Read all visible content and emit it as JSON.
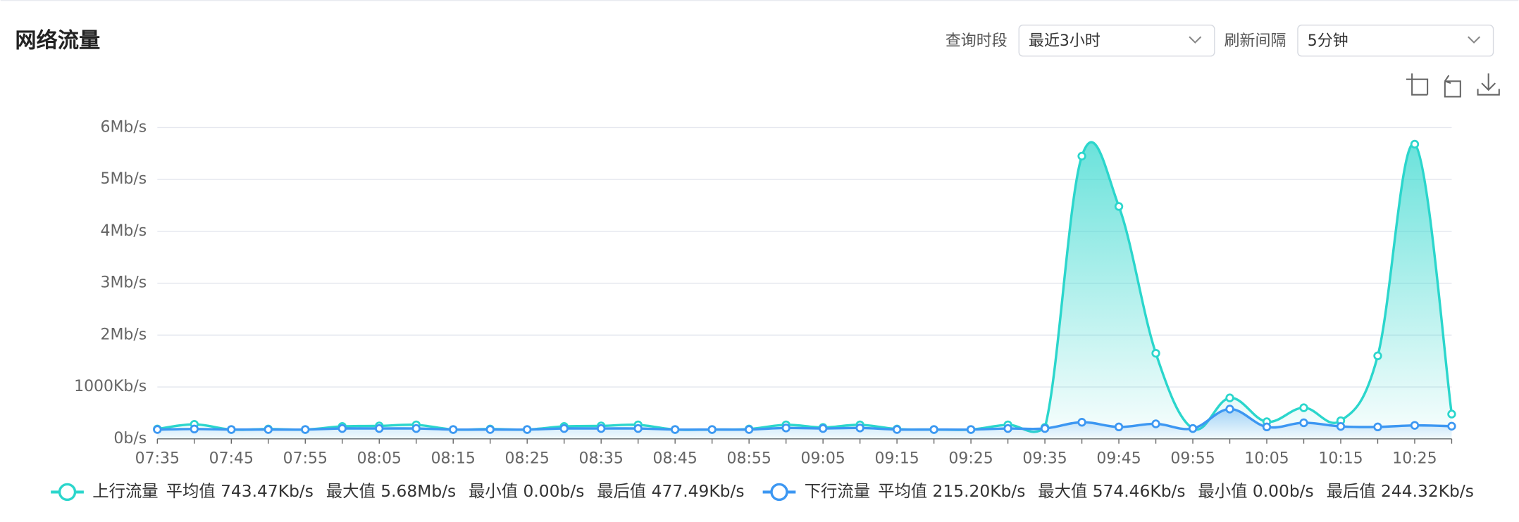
{
  "header": {
    "title": "网络流量",
    "period_label": "查询时段",
    "period_value": "最近3小时",
    "interval_label": "刷新间隔",
    "interval_value": "5分钟"
  },
  "chart_data": {
    "type": "line",
    "smooth": true,
    "area": true,
    "categories": [
      "07:35",
      null,
      "07:45",
      null,
      "07:55",
      null,
      "08:05",
      null,
      "08:15",
      null,
      "08:25",
      null,
      "08:35",
      null,
      "08:45",
      null,
      "08:55",
      null,
      "09:05",
      null,
      "09:15",
      null,
      "09:25",
      null,
      "09:35",
      null,
      "09:45",
      null,
      "09:55",
      null,
      "10:05",
      null,
      "10:15",
      null,
      "10:25",
      null
    ],
    "ylim": [
      0,
      6000
    ],
    "yticks": [
      {
        "value": 0,
        "label": "0b/s"
      },
      {
        "value": 1000,
        "label": "1000Kb/s"
      },
      {
        "value": 2000,
        "label": "2Mb/s"
      },
      {
        "value": 3000,
        "label": "3Mb/s"
      },
      {
        "value": 4000,
        "label": "4Mb/s"
      },
      {
        "value": 5000,
        "label": "5Mb/s"
      },
      {
        "value": 6000,
        "label": "6Mb/s"
      }
    ],
    "grid": true,
    "series": [
      {
        "name": "上行流量",
        "color": "#2bd6cc",
        "stats": [
          "平均值 743.47Kb/s",
          "最大值 5.68Mb/s",
          "最小值 0.00b/s",
          "最后值 477.49Kb/s"
        ],
        "values": [
          190,
          280,
          180,
          190,
          180,
          240,
          250,
          270,
          180,
          190,
          180,
          240,
          250,
          270,
          180,
          180,
          190,
          270,
          220,
          270,
          190,
          180,
          180,
          270,
          220,
          5450,
          4480,
          1650,
          200,
          790,
          330,
          600,
          350,
          1600,
          5680,
          477.49
        ]
      },
      {
        "name": "下行流量",
        "color": "#3c97f2",
        "stats": [
          "平均值 215.20Kb/s",
          "最大值 574.46Kb/s",
          "最小值 0.00b/s",
          "最后值 244.32Kb/s"
        ],
        "values": [
          180,
          190,
          180,
          180,
          180,
          200,
          200,
          200,
          180,
          180,
          180,
          200,
          200,
          200,
          180,
          180,
          180,
          210,
          200,
          210,
          180,
          180,
          180,
          200,
          200,
          320,
          230,
          290,
          200,
          574.46,
          230,
          310,
          240,
          230,
          260,
          244.32
        ]
      }
    ]
  }
}
